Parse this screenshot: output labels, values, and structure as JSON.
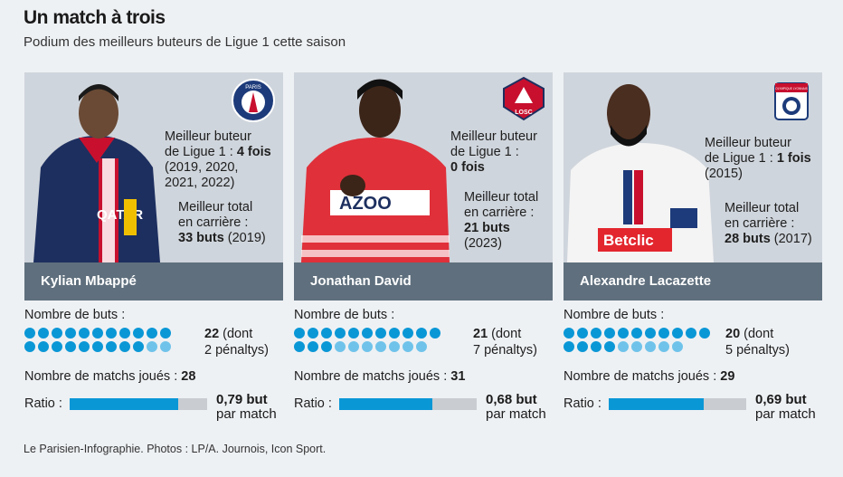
{
  "header": {
    "title": "Un match à trois",
    "subtitle": "Podium des meilleurs buteurs de Ligue 1 cette saison"
  },
  "players": [
    {
      "name": "Kylian Mbappé",
      "club_logo": "psg-crest-icon",
      "club_logo_text": "PARIS",
      "stat1_line1": "Meilleur buteur",
      "stat1_line2_pre": "de Ligue 1 : ",
      "stat1_line2_bold": "4 fois",
      "stat1_line3": "(2019, 2020,",
      "stat1_line4": "2021, 2022)",
      "stat2_line1": "Meilleur total",
      "stat2_line2": "en carrière :",
      "stat2_line3_bold": "33 buts",
      "stat2_line3_rest": " (2019)",
      "goals_label": "Nombre de buts :",
      "goals": 22,
      "penalties": 2,
      "goals_text_bold": "22",
      "goals_text_rest1": " (dont",
      "goals_text_rest2": "2 pénaltys)",
      "matches_label": "Nombre de matchs joués : ",
      "matches": "28",
      "ratio_label": "Ratio :",
      "ratio": 0.79,
      "ratio_text": "0,79 but",
      "ratio_unit": "par match"
    },
    {
      "name": "Jonathan David",
      "club_logo": "losc-crest-icon",
      "club_logo_text": "LOSC",
      "stat1_line1": "Meilleur buteur",
      "stat1_line2": "de Ligue 1 :",
      "stat1_line3_bold": "0 fois",
      "stat2_line1": "Meilleur total",
      "stat2_line2": "en carrière :",
      "stat2_line3_bold": "21 buts",
      "stat2_line4": "(2023)",
      "goals_label": "Nombre de buts :",
      "goals": 21,
      "penalties": 7,
      "goals_text_bold": "21",
      "goals_text_rest1": " (dont",
      "goals_text_rest2": "7 pénaltys)",
      "matches_label": "Nombre de matchs joués : ",
      "matches": "31",
      "ratio_label": "Ratio :",
      "ratio": 0.68,
      "ratio_text": "0,68 but",
      "ratio_unit": "par match"
    },
    {
      "name": "Alexandre Lacazette",
      "club_logo": "ol-crest-icon",
      "club_logo_text": "OLYMPIQUE LYONNAIS",
      "stat1_line1": "Meilleur buteur",
      "stat1_line2_pre": "de Ligue 1 : ",
      "stat1_line2_bold": "1 fois",
      "stat1_line3": "(2015)",
      "stat2_line1": "Meilleur total",
      "stat2_line2": "en carrière :",
      "stat2_line3_bold": "28 buts",
      "stat2_line3_rest": " (2017)",
      "goals_label": "Nombre de buts :",
      "goals": 20,
      "penalties": 5,
      "goals_text_bold": "20",
      "goals_text_rest1": " (dont",
      "goals_text_rest2": "5 pénaltys)",
      "matches_label": "Nombre de matchs joués : ",
      "matches": "29",
      "ratio_label": "Ratio :",
      "ratio": 0.69,
      "ratio_text": "0,69 but",
      "ratio_unit": "par match"
    }
  ],
  "colors": {
    "goal_dot": "#0a97d6",
    "penalty_dot": "#6fc3ea",
    "namebar": "#5f6f7d",
    "card_bg": "#cfd5dc"
  },
  "footer": "Le Parisien-Infographie.   Photos : LP/A. Journois, Icon Sport."
}
